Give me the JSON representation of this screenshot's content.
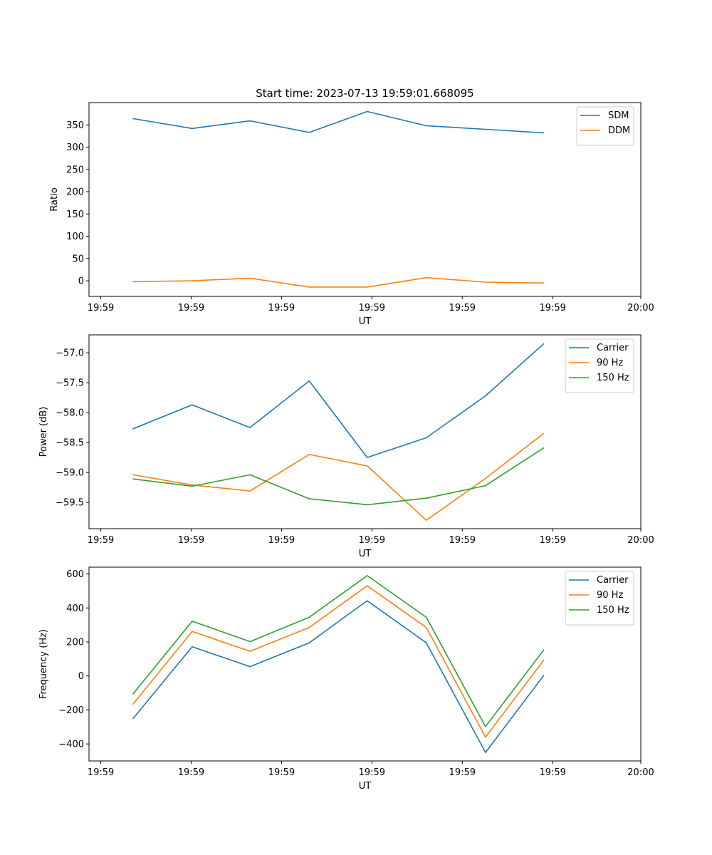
{
  "figure_title": "Start time: 2023-07-13 19:59:01.668095",
  "chart_data": [
    {
      "type": "line",
      "title": "Start time: 2023-07-13 19:59:01.668095",
      "xlabel": "UT",
      "ylabel": "Ratio",
      "x_tick_labels": [
        "19:59",
        "19:59",
        "19:59",
        "19:59",
        "19:59",
        "19:59",
        "20:00"
      ],
      "xlim": [
        0,
        6.136
      ],
      "x": [
        0.491,
        1.147,
        1.791,
        2.449,
        3.093,
        3.751,
        4.409,
        5.055
      ],
      "ylim": [
        -35,
        400
      ],
      "y_ticks": [
        0,
        50,
        100,
        150,
        200,
        250,
        300,
        350
      ],
      "legend_position": "top-right",
      "series": [
        {
          "name": "SDM",
          "color": "#1f77b4",
          "values": [
            364,
            342,
            359,
            333,
            380,
            348,
            340,
            332
          ]
        },
        {
          "name": "DDM",
          "color": "#ff7f0e",
          "values": [
            -2,
            0,
            6,
            -14,
            -14,
            7,
            -3,
            -5
          ]
        }
      ]
    },
    {
      "type": "line",
      "xlabel": "UT",
      "ylabel": "Power (dB)",
      "x_tick_labels": [
        "19:59",
        "19:59",
        "19:59",
        "19:59",
        "19:59",
        "19:59",
        "20:00"
      ],
      "xlim": [
        0,
        6.136
      ],
      "x": [
        0.491,
        1.147,
        1.791,
        2.449,
        3.093,
        3.751,
        4.409,
        5.055
      ],
      "ylim": [
        -59.94,
        -56.7
      ],
      "y_ticks": [
        -59.5,
        -59.0,
        -58.5,
        -58.0,
        -57.5,
        -57.0
      ],
      "y_tick_labels": [
        "−59.5",
        "−59.0",
        "−58.5",
        "−58.0",
        "−57.5",
        "−57.0"
      ],
      "legend_position": "top-right",
      "series": [
        {
          "name": "Carrier",
          "color": "#1f77b4",
          "values": [
            -58.27,
            -57.87,
            -58.25,
            -57.47,
            -58.75,
            -58.42,
            -57.72,
            -56.85
          ]
        },
        {
          "name": "90 Hz",
          "color": "#ff7f0e",
          "values": [
            -59.04,
            -59.21,
            -59.31,
            -58.7,
            -58.89,
            -59.8,
            -59.1,
            -58.35
          ]
        },
        {
          "name": "150 Hz",
          "color": "#2ca02c",
          "values": [
            -59.11,
            -59.23,
            -59.04,
            -59.44,
            -59.54,
            -59.43,
            -59.22,
            -58.59
          ]
        }
      ]
    },
    {
      "type": "line",
      "xlabel": "UT",
      "ylabel": "Frequency (Hz)",
      "x_tick_labels": [
        "19:59",
        "19:59",
        "19:59",
        "19:59",
        "19:59",
        "19:59",
        "20:00"
      ],
      "xlim": [
        0,
        6.136
      ],
      "x": [
        0.491,
        1.147,
        1.791,
        2.449,
        3.093,
        3.751,
        4.409,
        5.055
      ],
      "ylim": [
        -500,
        640
      ],
      "y_ticks": [
        -400,
        -200,
        0,
        200,
        400,
        600
      ],
      "y_tick_labels": [
        "−400",
        "−200",
        "0",
        "200",
        "400",
        "600"
      ],
      "legend_position": "top-right",
      "series": [
        {
          "name": "Carrier",
          "color": "#1f77b4",
          "values": [
            -250,
            172,
            55,
            195,
            442,
            195,
            -450,
            2
          ]
        },
        {
          "name": "90 Hz",
          "color": "#ff7f0e",
          "values": [
            -165,
            262,
            145,
            285,
            530,
            285,
            -360,
            92
          ]
        },
        {
          "name": "150 Hz",
          "color": "#2ca02c",
          "values": [
            -105,
            322,
            202,
            345,
            590,
            345,
            -298,
            152
          ]
        }
      ]
    }
  ]
}
